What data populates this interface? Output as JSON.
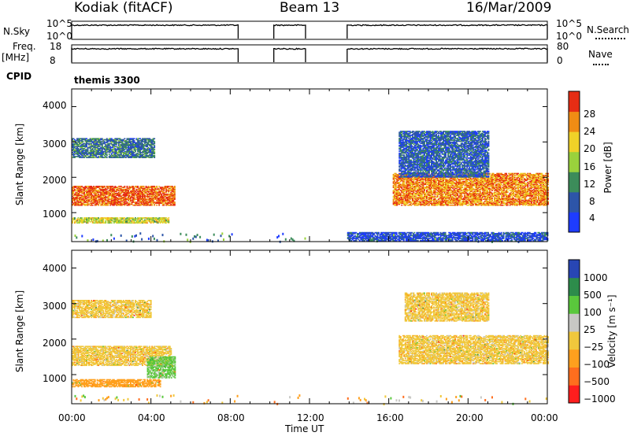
{
  "header": {
    "station": "Kodiak (fitACF)",
    "beam": "Beam 13",
    "date": "16/Mar/2009"
  },
  "top_panels": {
    "nsky_label": "N.Sky",
    "nsky_ticks": [
      "10^5",
      "10^0"
    ],
    "nsearch_label": "N.Search",
    "nsearch_ticks": [
      "10^5",
      "10^0"
    ],
    "freq_label_1": "Freq.",
    "freq_label_2": "[MHz]",
    "freq_ticks": [
      "18",
      "8"
    ],
    "nave_label": "Nave",
    "nave_ticks": [
      "80",
      "0"
    ],
    "cpid_label": "CPID",
    "cpid_value": "themis 3300"
  },
  "time_axis": {
    "label": "Time UT",
    "ticks": [
      "00:00",
      "04:00",
      "08:00",
      "12:00",
      "16:00",
      "20:00",
      "00:00"
    ]
  },
  "power_panel": {
    "ylabel": "Slant Range [km]",
    "yticks": [
      "4000",
      "3000",
      "2000",
      "1000"
    ],
    "colorbar_label": "Power [dB]",
    "colorbar_ticks": [
      "28",
      "24",
      "20",
      "16",
      "12",
      "8",
      "4"
    ]
  },
  "velocity_panel": {
    "ylabel": "Slant Range [km]",
    "yticks": [
      "4000",
      "3000",
      "2000",
      "1000"
    ],
    "colorbar_label": "Velocity [m s⁻¹]",
    "colorbar_ticks": [
      "1000",
      "500",
      "100",
      "25",
      "−25",
      "−100",
      "−500",
      "−1000"
    ]
  },
  "chart_data": [
    {
      "type": "line",
      "title": "N.Sky / N.Search",
      "xlabel": "Time UT",
      "xlim_hours": [
        0,
        24
      ],
      "data_gaps_hours": [
        [
          8.4,
          10.2
        ],
        [
          11.8,
          13.9
        ]
      ],
      "ylim": [
        "10^0",
        "10^5"
      ]
    },
    {
      "type": "line",
      "title": "Freq. / Nave",
      "xlim_hours": [
        0,
        24
      ],
      "data_gaps_hours": [
        [
          8.4,
          10.2
        ],
        [
          11.8,
          13.9
        ]
      ],
      "ylim_freq_mhz": [
        8,
        18
      ],
      "ylim_nave": [
        0,
        80
      ]
    },
    {
      "type": "heatmap",
      "title": "Power [dB]",
      "xlabel": "Time UT",
      "ylabel": "Slant Range [km]",
      "xlim_hours": [
        0,
        24
      ],
      "ylim_km": [
        180,
        4500
      ],
      "zlim_db": [
        0,
        30
      ],
      "colorbar": [
        {
          "value": 4,
          "color": "#1e3cff"
        },
        {
          "value": 8,
          "color": "#2d55a8"
        },
        {
          "value": 12,
          "color": "#3c8c5a"
        },
        {
          "value": 16,
          "color": "#9ad23c"
        },
        {
          "value": 20,
          "color": "#f0d228"
        },
        {
          "value": 24,
          "color": "#f08c14"
        },
        {
          "value": 28,
          "color": "#e62d14"
        }
      ],
      "echo_regions": [
        {
          "t_start": 0.0,
          "t_end": 5.2,
          "r_start": 1200,
          "r_end": 1750,
          "level_db": 28
        },
        {
          "t_start": 0.0,
          "t_end": 4.9,
          "r_start": 700,
          "r_end": 850,
          "level_db": 20
        },
        {
          "t_start": 0.0,
          "t_end": 4.2,
          "r_start": 2550,
          "r_end": 3100,
          "level_db": 12
        },
        {
          "t_start": 16.2,
          "t_end": 24.0,
          "r_start": 1200,
          "r_end": 2100,
          "level_db": 26
        },
        {
          "t_start": 16.5,
          "t_end": 21.0,
          "r_start": 2000,
          "r_end": 3300,
          "level_db": 10
        },
        {
          "t_start": 13.9,
          "t_end": 24.0,
          "r_start": 200,
          "r_end": 450,
          "level_db": 8
        }
      ]
    },
    {
      "type": "heatmap",
      "title": "Velocity [m s⁻¹]",
      "xlabel": "Time UT",
      "ylabel": "Slant Range [km]",
      "xlim_hours": [
        0,
        24
      ],
      "ylim_km": [
        180,
        4500
      ],
      "zlim_ms": [
        -1000,
        1000
      ],
      "colorbar": [
        {
          "value": -1000,
          "color": "#ff1e1e"
        },
        {
          "value": -500,
          "color": "#ff6e1e"
        },
        {
          "value": -100,
          "color": "#ffa01e"
        },
        {
          "value": -25,
          "color": "#f0c83c"
        },
        {
          "value": 25,
          "color": "#c8c8c4"
        },
        {
          "value": 100,
          "color": "#5ac83c"
        },
        {
          "value": 500,
          "color": "#2d8c4b"
        },
        {
          "value": 1000,
          "color": "#2846b4"
        }
      ],
      "echo_regions": [
        {
          "t_start": 0.0,
          "t_end": 5.0,
          "r_start": 1250,
          "r_end": 1800,
          "velocity_ms": 0
        },
        {
          "t_start": 3.8,
          "t_end": 5.2,
          "r_start": 900,
          "r_end": 1500,
          "velocity_ms": 120
        },
        {
          "t_start": 0.0,
          "t_end": 4.5,
          "r_start": 650,
          "r_end": 850,
          "velocity_ms": -60
        },
        {
          "t_start": 0.0,
          "t_end": 4.0,
          "r_start": 2600,
          "r_end": 3100,
          "velocity_ms": 0
        },
        {
          "t_start": 16.5,
          "t_end": 24.0,
          "r_start": 1300,
          "r_end": 2100,
          "velocity_ms": 0
        },
        {
          "t_start": 16.8,
          "t_end": 21.0,
          "r_start": 2500,
          "r_end": 3300,
          "velocity_ms": 0
        }
      ]
    }
  ]
}
